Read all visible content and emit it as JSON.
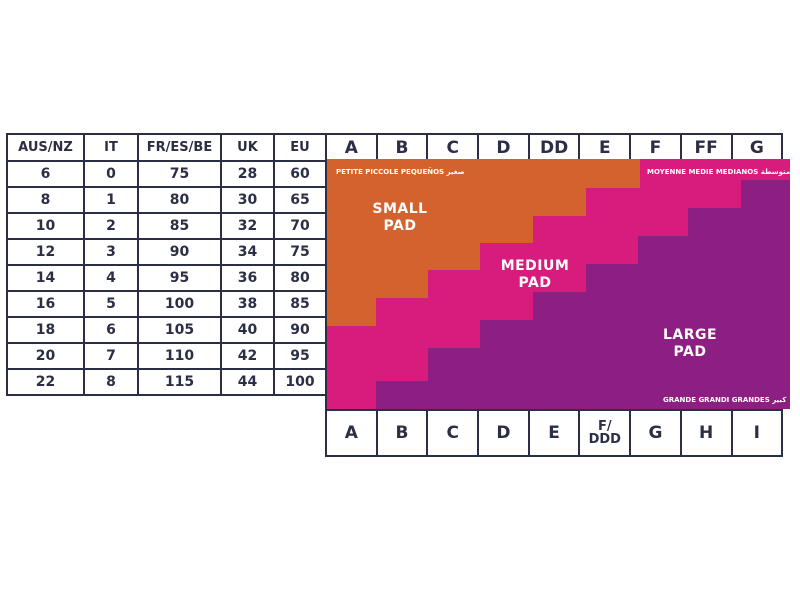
{
  "colors": {
    "border": "#2b2f45",
    "small_pad": "#d4622f",
    "medium_pad": "#d71c7e",
    "large_pad": "#8e1f82",
    "text": "#2b2f45"
  },
  "band_table": {
    "headers": [
      "AUS/NZ",
      "IT",
      "FR/ES/BE",
      "UK",
      "EU"
    ],
    "rows": [
      [
        "6",
        "0",
        "75",
        "28",
        "60"
      ],
      [
        "8",
        "1",
        "80",
        "30",
        "65"
      ],
      [
        "10",
        "2",
        "85",
        "32",
        "70"
      ],
      [
        "12",
        "3",
        "90",
        "34",
        "75"
      ],
      [
        "14",
        "4",
        "95",
        "36",
        "80"
      ],
      [
        "16",
        "5",
        "100",
        "38",
        "85"
      ],
      [
        "18",
        "6",
        "105",
        "40",
        "90"
      ],
      [
        "20",
        "7",
        "110",
        "42",
        "95"
      ],
      [
        "22",
        "8",
        "115",
        "44",
        "100"
      ]
    ]
  },
  "cup_sizes_top": [
    "A",
    "B",
    "C",
    "D",
    "DD",
    "E",
    "F",
    "FF",
    "G"
  ],
  "cup_sizes_bottom": [
    "A",
    "B",
    "C",
    "D",
    "E",
    "F/\nDDD",
    "G",
    "H",
    "I"
  ],
  "pads": {
    "small": {
      "title_line1": "SMALL",
      "title_line2": "PAD",
      "langs": "PETITE  PICCOLE  PEQUEÑOS  صغير"
    },
    "medium": {
      "title_line1": "MEDIUM",
      "title_line2": "PAD",
      "langs": "MOYENNE  MEDIE  MEDIANOS  متوسطة"
    },
    "large": {
      "title_line1": "LARGE",
      "title_line2": "PAD",
      "langs": "GRANDE  GRANDI  GRANDES  كبير"
    }
  }
}
